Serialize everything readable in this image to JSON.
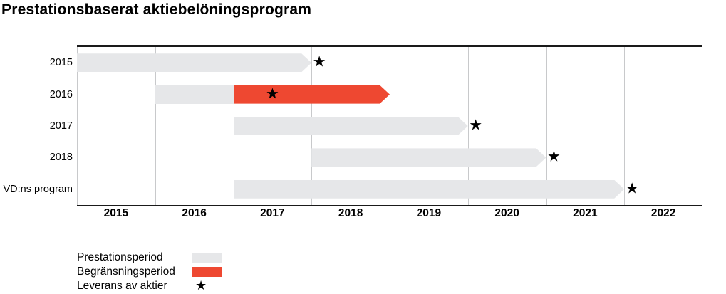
{
  "title": "Prestationsbaserat aktiebelöningsprogram",
  "icons": {
    "star": "★"
  },
  "chart_data": {
    "type": "bar",
    "subtype": "gantt-timeline",
    "title": "Prestationsbaserat aktiebelöningsprogram",
    "x_axis": {
      "tick_labels": [
        "2015",
        "2016",
        "2017",
        "2018",
        "2019",
        "2020",
        "2021",
        "2022"
      ],
      "range_years": [
        2015,
        2023
      ],
      "gridlines": true
    },
    "colors": {
      "prestationsperiod": "#e6e7e9",
      "begransningsperiod": "#ee4831",
      "star": "#000000",
      "gridline": "#c8c9cb",
      "axis": "#1a1a1a"
    },
    "bar_shape": "arrow-right",
    "rows": [
      {
        "label": "2015",
        "segments": [
          {
            "period": "prestationsperiod",
            "start": 2015,
            "end": 2018,
            "arrow": true
          }
        ],
        "delivery_year": 2018.1
      },
      {
        "label": "2016",
        "segments": [
          {
            "period": "prestationsperiod",
            "start": 2016,
            "end": 2017,
            "arrow": false
          },
          {
            "period": "begransningsperiod",
            "start": 2017,
            "end": 2019,
            "arrow": true
          }
        ],
        "delivery_year": 2017.5
      },
      {
        "label": "2017",
        "segments": [
          {
            "period": "prestationsperiod",
            "start": 2017,
            "end": 2020,
            "arrow": true
          }
        ],
        "delivery_year": 2020.1
      },
      {
        "label": "2018",
        "segments": [
          {
            "period": "prestationsperiod",
            "start": 2018,
            "end": 2021,
            "arrow": true
          }
        ],
        "delivery_year": 2021.1
      },
      {
        "label": "VD:ns program",
        "segments": [
          {
            "period": "prestationsperiod",
            "start": 2017,
            "end": 2022,
            "arrow": true
          }
        ],
        "delivery_year": 2022.1
      }
    ],
    "legend": [
      {
        "label": "Prestationsperiod",
        "swatch": "prestationsperiod"
      },
      {
        "label": "Begränsningsperiod",
        "swatch": "begransningsperiod"
      },
      {
        "label": "Leverans av aktier",
        "swatch": "star"
      }
    ],
    "legend_position": "bottom-left"
  }
}
